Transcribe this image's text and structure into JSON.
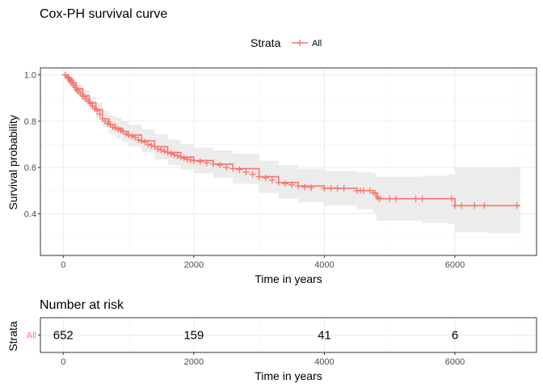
{
  "chart_data": [
    {
      "type": "line",
      "title": "Cox-PH survival curve",
      "legend": {
        "title": "Strata",
        "entries": [
          "All"
        ],
        "placement": "top"
      },
      "xlabel": "Time in years",
      "ylabel": "Survival probability",
      "xlim": [
        -350,
        7250
      ],
      "ylim": [
        0.22,
        1.03
      ],
      "x_ticks": [
        0,
        2000,
        4000,
        6000
      ],
      "x_tick_labels": [
        "0",
        "2000",
        "4000",
        "6000"
      ],
      "y_ticks": [
        0.4,
        0.6,
        0.8,
        1.0
      ],
      "y_tick_labels": [
        "0.4",
        "0.6",
        "0.8",
        "1.0"
      ],
      "grid": true,
      "colors": {
        "series": "#F8766D",
        "ribbon": "#ebebeb"
      },
      "series": [
        {
          "name": "All",
          "x": [
            0,
            50,
            100,
            150,
            200,
            300,
            400,
            500,
            600,
            700,
            800,
            900,
            1000,
            1200,
            1400,
            1600,
            1800,
            2000,
            2300,
            2600,
            3000,
            3300,
            3600,
            4000,
            4500,
            4750,
            4800,
            5000,
            5500,
            5900,
            6000,
            6500,
            7000
          ],
          "y": [
            1.0,
            0.99,
            0.98,
            0.965,
            0.94,
            0.91,
            0.88,
            0.85,
            0.81,
            0.785,
            0.77,
            0.755,
            0.74,
            0.715,
            0.69,
            0.665,
            0.645,
            0.63,
            0.615,
            0.595,
            0.56,
            0.535,
            0.52,
            0.51,
            0.5,
            0.49,
            0.465,
            0.465,
            0.465,
            0.465,
            0.435,
            0.435,
            0.435
          ],
          "lower": [
            1.0,
            0.985,
            0.97,
            0.95,
            0.92,
            0.885,
            0.85,
            0.815,
            0.775,
            0.745,
            0.725,
            0.71,
            0.69,
            0.665,
            0.635,
            0.61,
            0.59,
            0.575,
            0.555,
            0.53,
            0.49,
            0.465,
            0.45,
            0.435,
            0.42,
            0.405,
            0.37,
            0.37,
            0.36,
            0.355,
            0.32,
            0.315,
            0.315
          ],
          "upper": [
            1.0,
            0.995,
            0.99,
            0.98,
            0.96,
            0.935,
            0.905,
            0.88,
            0.845,
            0.825,
            0.815,
            0.8,
            0.785,
            0.765,
            0.745,
            0.72,
            0.7,
            0.685,
            0.675,
            0.66,
            0.63,
            0.61,
            0.595,
            0.585,
            0.58,
            0.575,
            0.56,
            0.56,
            0.565,
            0.57,
            0.6,
            0.6,
            0.6
          ],
          "censored": [
            [
              30,
              1.0
            ],
            [
              60,
              0.99
            ],
            [
              80,
              0.99
            ],
            [
              90,
              0.985
            ],
            [
              110,
              0.975
            ],
            [
              120,
              0.97
            ],
            [
              140,
              0.965
            ],
            [
              160,
              0.955
            ],
            [
              180,
              0.945
            ],
            [
              210,
              0.935
            ],
            [
              230,
              0.93
            ],
            [
              260,
              0.92
            ],
            [
              290,
              0.91
            ],
            [
              320,
              0.905
            ],
            [
              350,
              0.895
            ],
            [
              380,
              0.885
            ],
            [
              420,
              0.875
            ],
            [
              450,
              0.865
            ],
            [
              480,
              0.855
            ],
            [
              520,
              0.845
            ],
            [
              560,
              0.83
            ],
            [
              600,
              0.81
            ],
            [
              640,
              0.8
            ],
            [
              680,
              0.79
            ],
            [
              720,
              0.785
            ],
            [
              760,
              0.775
            ],
            [
              800,
              0.77
            ],
            [
              840,
              0.765
            ],
            [
              880,
              0.76
            ],
            [
              920,
              0.755
            ],
            [
              960,
              0.745
            ],
            [
              1000,
              0.74
            ],
            [
              1050,
              0.735
            ],
            [
              1100,
              0.73
            ],
            [
              1150,
              0.72
            ],
            [
              1200,
              0.715
            ],
            [
              1250,
              0.71
            ],
            [
              1300,
              0.7
            ],
            [
              1350,
              0.695
            ],
            [
              1400,
              0.69
            ],
            [
              1450,
              0.68
            ],
            [
              1500,
              0.675
            ],
            [
              1550,
              0.67
            ],
            [
              1600,
              0.665
            ],
            [
              1650,
              0.66
            ],
            [
              1700,
              0.655
            ],
            [
              1750,
              0.65
            ],
            [
              1800,
              0.645
            ],
            [
              1850,
              0.64
            ],
            [
              1900,
              0.635
            ],
            [
              1950,
              0.632
            ],
            [
              2000,
              0.63
            ],
            [
              2100,
              0.625
            ],
            [
              2200,
              0.62
            ],
            [
              2300,
              0.615
            ],
            [
              2400,
              0.61
            ],
            [
              2500,
              0.6
            ],
            [
              2600,
              0.595
            ],
            [
              2700,
              0.59
            ],
            [
              2800,
              0.58
            ],
            [
              2900,
              0.57
            ],
            [
              3000,
              0.56
            ],
            [
              3100,
              0.555
            ],
            [
              3200,
              0.545
            ],
            [
              3300,
              0.535
            ],
            [
              3400,
              0.53
            ],
            [
              3500,
              0.525
            ],
            [
              3600,
              0.52
            ],
            [
              3700,
              0.515
            ],
            [
              3800,
              0.512
            ],
            [
              4000,
              0.51
            ],
            [
              4100,
              0.51
            ],
            [
              4200,
              0.51
            ],
            [
              4300,
              0.51
            ],
            [
              4500,
              0.5
            ],
            [
              4550,
              0.5
            ],
            [
              4600,
              0.5
            ],
            [
              4700,
              0.5
            ],
            [
              4750,
              0.49
            ],
            [
              4780,
              0.49
            ],
            [
              4820,
              0.47
            ],
            [
              4850,
              0.465
            ],
            [
              5000,
              0.465
            ],
            [
              5100,
              0.465
            ],
            [
              5400,
              0.465
            ],
            [
              5500,
              0.465
            ],
            [
              5950,
              0.465
            ],
            [
              6000,
              0.435
            ],
            [
              6100,
              0.435
            ],
            [
              6300,
              0.435
            ],
            [
              6450,
              0.435
            ],
            [
              6950,
              0.435
            ]
          ]
        }
      ]
    },
    {
      "type": "table",
      "title": "Number at risk",
      "xlabel": "Time in years",
      "ylabel": "Strata",
      "xlim": [
        -350,
        7250
      ],
      "x_ticks": [
        0,
        2000,
        4000,
        6000
      ],
      "x_tick_labels": [
        "0",
        "2000",
        "4000",
        "6000"
      ],
      "row_labels": [
        "All"
      ],
      "times": [
        0,
        2000,
        4000,
        6000
      ],
      "values": [
        "652",
        "159",
        "41",
        "6"
      ]
    }
  ]
}
